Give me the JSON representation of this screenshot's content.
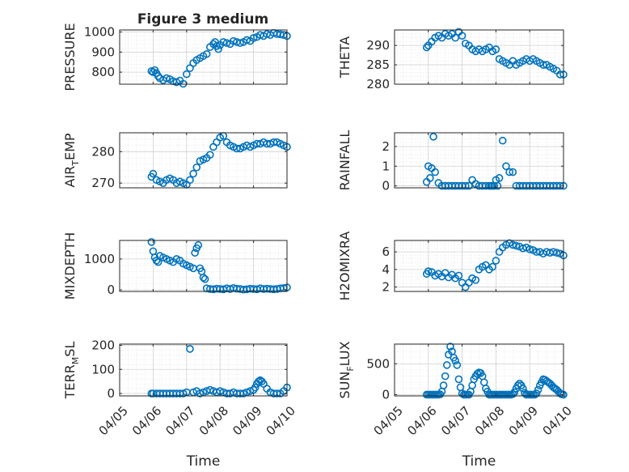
{
  "figure_title": "Figure 3 medium",
  "colors": {
    "marker": "#0072bd",
    "axis": "#262626",
    "grid": "#d0d0d0"
  },
  "chart_data": [
    {
      "type": "scatter",
      "title": "Figure 3 medium",
      "xlabel": "",
      "ylabel": "PRESSURE",
      "ylim": [
        740,
        1010
      ],
      "yticks": [
        800,
        900,
        1000
      ],
      "xlim": [
        0,
        5
      ],
      "grid": true,
      "x": [
        0.95,
        1.0,
        1.05,
        1.1,
        1.15,
        1.2,
        1.3,
        1.4,
        1.5,
        1.6,
        1.7,
        1.8,
        1.9,
        2.0,
        2.1,
        2.2,
        2.3,
        2.4,
        2.5,
        2.6,
        2.7,
        2.8,
        2.85,
        2.9,
        2.95,
        3.0,
        3.1,
        3.2,
        3.3,
        3.4,
        3.5,
        3.6,
        3.7,
        3.8,
        3.9,
        4.0,
        4.1,
        4.2,
        4.3,
        4.4,
        4.5,
        4.6,
        4.7,
        4.8,
        4.9,
        5.0
      ],
      "y": [
        805,
        800,
        810,
        795,
        780,
        770,
        760,
        770,
        765,
        755,
        750,
        758,
        742,
        790,
        820,
        845,
        860,
        870,
        880,
        890,
        925,
        940,
        950,
        930,
        915,
        935,
        950,
        945,
        940,
        955,
        950,
        945,
        950,
        960,
        955,
        970,
        975,
        985,
        980,
        990,
        985,
        995,
        990,
        988,
        985,
        980
      ]
    },
    {
      "type": "scatter",
      "xlabel": "",
      "ylabel": "THETA",
      "ylim": [
        280,
        294
      ],
      "yticks": [
        280,
        285,
        290
      ],
      "xlim": [
        0,
        5
      ],
      "grid": true,
      "x": [
        0.95,
        1.0,
        1.1,
        1.2,
        1.3,
        1.4,
        1.5,
        1.6,
        1.7,
        1.8,
        1.9,
        2.0,
        2.1,
        2.2,
        2.3,
        2.4,
        2.5,
        2.6,
        2.7,
        2.8,
        2.9,
        3.0,
        3.1,
        3.2,
        3.3,
        3.4,
        3.5,
        3.6,
        3.7,
        3.8,
        3.9,
        4.0,
        4.1,
        4.2,
        4.3,
        4.4,
        4.5,
        4.6,
        4.7,
        4.8,
        4.9,
        5.0
      ],
      "y": [
        289.5,
        290,
        291,
        292,
        292.5,
        292,
        293,
        292.5,
        293,
        292,
        293.5,
        292.5,
        290.5,
        290,
        289,
        288.5,
        289,
        288.5,
        289,
        289.5,
        288.5,
        289,
        286.5,
        286,
        285.5,
        285,
        286,
        285,
        285.5,
        286,
        286.5,
        286,
        286.5,
        286,
        285.5,
        285,
        285,
        284.5,
        284,
        283.5,
        282.5,
        282.5
      ]
    },
    {
      "type": "scatter",
      "xlabel": "",
      "ylabel": "AIR_TEMP",
      "ylim": [
        268.5,
        286
      ],
      "yticks": [
        270,
        280
      ],
      "xlim": [
        0,
        5
      ],
      "grid": true,
      "x": [
        0.95,
        1.0,
        1.1,
        1.2,
        1.3,
        1.4,
        1.5,
        1.6,
        1.7,
        1.8,
        1.9,
        2.0,
        2.1,
        2.2,
        2.3,
        2.4,
        2.5,
        2.6,
        2.7,
        2.8,
        2.9,
        3.0,
        3.1,
        3.2,
        3.3,
        3.4,
        3.5,
        3.6,
        3.7,
        3.8,
        3.9,
        4.0,
        4.1,
        4.2,
        4.3,
        4.4,
        4.5,
        4.6,
        4.7,
        4.8,
        4.9,
        5.0
      ],
      "y": [
        272,
        273,
        271,
        270.5,
        270,
        271,
        271.5,
        271,
        270,
        270.5,
        270,
        269.5,
        271,
        273,
        275,
        277,
        277.5,
        278,
        279,
        281.5,
        283,
        284.5,
        285,
        283,
        282,
        281.5,
        281,
        281,
        281.5,
        282,
        281.5,
        282,
        282.5,
        282.5,
        283,
        282.5,
        282.5,
        283,
        283,
        282.5,
        282,
        281.5
      ]
    },
    {
      "type": "scatter",
      "xlabel": "",
      "ylabel": "RAINFALL",
      "ylim": [
        -0.1,
        2.7
      ],
      "yticks": [
        0,
        1,
        2
      ],
      "xlim": [
        0,
        5
      ],
      "grid": true,
      "x": [
        0.95,
        1.0,
        1.05,
        1.1,
        1.15,
        1.2,
        1.3,
        1.4,
        1.5,
        1.6,
        1.7,
        1.8,
        1.9,
        2.0,
        2.1,
        2.2,
        2.3,
        2.4,
        2.5,
        2.6,
        2.7,
        2.8,
        2.85,
        2.9,
        2.95,
        3.0,
        3.05,
        3.1,
        3.2,
        3.3,
        3.4,
        3.5,
        3.6,
        3.7,
        3.8,
        3.9,
        4.0,
        4.1,
        4.2,
        4.3,
        4.4,
        4.5,
        4.6,
        4.7,
        4.8,
        4.9,
        5.0
      ],
      "y": [
        0.2,
        1.0,
        0.4,
        0.9,
        2.5,
        0.7,
        0.15,
        0,
        0,
        0,
        0,
        0,
        0,
        0,
        0,
        0,
        0.3,
        0.1,
        0,
        0,
        0,
        0,
        0,
        0,
        0,
        0.3,
        0,
        0.4,
        2.3,
        1.0,
        0.7,
        0.7,
        0,
        0,
        0,
        0,
        0,
        0,
        0,
        0,
        0,
        0,
        0,
        0,
        0,
        0,
        0
      ]
    },
    {
      "type": "scatter",
      "xlabel": "",
      "ylabel": "MIXDEPTH",
      "ylim": [
        -50,
        1600
      ],
      "yticks": [
        0,
        1000
      ],
      "xlim": [
        0,
        5
      ],
      "grid": true,
      "x": [
        0.95,
        1.0,
        1.05,
        1.1,
        1.15,
        1.2,
        1.3,
        1.4,
        1.5,
        1.6,
        1.7,
        1.8,
        1.9,
        2.0,
        2.1,
        2.2,
        2.25,
        2.3,
        2.35,
        2.4,
        2.45,
        2.5,
        2.55,
        2.6,
        2.7,
        2.8,
        2.9,
        3.0,
        3.1,
        3.2,
        3.3,
        3.4,
        3.5,
        3.6,
        3.7,
        3.8,
        3.9,
        4.0,
        4.1,
        4.2,
        4.3,
        4.4,
        4.5,
        4.6,
        4.7,
        4.8,
        4.9,
        5.0
      ],
      "y": [
        1550,
        1250,
        1050,
        950,
        900,
        1100,
        1050,
        1000,
        950,
        900,
        1000,
        950,
        850,
        800,
        750,
        700,
        1200,
        1350,
        1450,
        700,
        600,
        400,
        350,
        50,
        30,
        20,
        40,
        30,
        20,
        50,
        30,
        60,
        40,
        30,
        10,
        20,
        40,
        30,
        20,
        50,
        30,
        40,
        30,
        20,
        30,
        50,
        60,
        80
      ]
    },
    {
      "type": "scatter",
      "xlabel": "",
      "ylabel": "H2OMIXRA",
      "ylim": [
        1.5,
        7.3
      ],
      "yticks": [
        2,
        4,
        6
      ],
      "xlim": [
        0,
        5
      ],
      "grid": true,
      "x": [
        0.95,
        1.0,
        1.1,
        1.2,
        1.3,
        1.4,
        1.5,
        1.6,
        1.7,
        1.8,
        1.9,
        2.0,
        2.1,
        2.2,
        2.3,
        2.4,
        2.5,
        2.6,
        2.7,
        2.8,
        2.9,
        3.0,
        3.1,
        3.2,
        3.3,
        3.4,
        3.5,
        3.6,
        3.7,
        3.8,
        3.9,
        4.0,
        4.1,
        4.2,
        4.3,
        4.4,
        4.5,
        4.6,
        4.7,
        4.8,
        4.9,
        5.0
      ],
      "y": [
        3.5,
        3.8,
        3.7,
        3.3,
        3.5,
        3.2,
        3.6,
        3.1,
        3.4,
        3.0,
        3.3,
        2.5,
        2.0,
        2.5,
        3.0,
        2.8,
        4.0,
        4.3,
        4.5,
        4.0,
        4.3,
        5.0,
        6.0,
        6.5,
        6.8,
        7.0,
        6.8,
        6.7,
        6.6,
        6.4,
        6.5,
        6.3,
        6.2,
        6.0,
        6.0,
        5.8,
        6.0,
        5.9,
        6.0,
        5.9,
        5.8,
        5.6
      ]
    },
    {
      "type": "scatter",
      "xlabel": "Time",
      "ylabel": "TERR_MSL",
      "ylim": [
        -10,
        205
      ],
      "yticks": [
        0,
        100,
        200
      ],
      "xlim": [
        0,
        5
      ],
      "xticklabels": [
        "04/05",
        "04/06",
        "04/07",
        "04/08",
        "04/09",
        "04/10"
      ],
      "grid": true,
      "x": [
        0.95,
        1.0,
        1.1,
        1.2,
        1.3,
        1.4,
        1.5,
        1.6,
        1.7,
        1.8,
        1.9,
        2.0,
        2.1,
        2.2,
        2.3,
        2.4,
        2.5,
        2.6,
        2.7,
        2.8,
        2.9,
        3.0,
        3.1,
        3.2,
        3.3,
        3.4,
        3.5,
        3.6,
        3.7,
        3.8,
        3.9,
        4.0,
        4.05,
        4.1,
        4.15,
        4.2,
        4.25,
        4.3,
        4.4,
        4.5,
        4.6,
        4.7,
        4.8,
        4.9,
        5.0
      ],
      "y": [
        0,
        0,
        0,
        0,
        0,
        0,
        0,
        0,
        0,
        0,
        0,
        5,
        185,
        5,
        10,
        0,
        5,
        10,
        15,
        10,
        5,
        10,
        5,
        0,
        0,
        5,
        0,
        0,
        0,
        5,
        10,
        15,
        25,
        40,
        50,
        55,
        50,
        40,
        20,
        5,
        0,
        0,
        0,
        10,
        25
      ]
    },
    {
      "type": "scatter",
      "xlabel": "Time",
      "ylabel": "SUN_FLUX",
      "ylim": [
        -20,
        820
      ],
      "yticks": [
        0,
        500
      ],
      "xlim": [
        0,
        5
      ],
      "xticklabels": [
        "04/05",
        "04/06",
        "04/07",
        "04/08",
        "04/09",
        "04/10"
      ],
      "grid": true,
      "x": [
        0.95,
        1.0,
        1.05,
        1.1,
        1.15,
        1.2,
        1.25,
        1.3,
        1.35,
        1.4,
        1.45,
        1.5,
        1.55,
        1.6,
        1.65,
        1.7,
        1.75,
        1.8,
        1.85,
        1.9,
        1.95,
        2.0,
        2.05,
        2.1,
        2.15,
        2.2,
        2.25,
        2.3,
        2.35,
        2.4,
        2.45,
        2.5,
        2.55,
        2.6,
        2.65,
        2.7,
        2.75,
        2.8,
        2.85,
        2.9,
        2.95,
        3.0,
        3.05,
        3.1,
        3.15,
        3.2,
        3.25,
        3.3,
        3.35,
        3.4,
        3.45,
        3.5,
        3.55,
        3.6,
        3.65,
        3.7,
        3.75,
        3.8,
        3.85,
        3.9,
        3.95,
        4.0,
        4.05,
        4.1,
        4.15,
        4.2,
        4.25,
        4.3,
        4.35,
        4.4,
        4.45,
        4.5,
        4.55,
        4.6,
        4.65,
        4.7,
        4.75,
        4.8,
        4.85,
        4.9,
        4.95,
        5.0
      ],
      "y": [
        0,
        0,
        0,
        0,
        0,
        0,
        0,
        0,
        5,
        50,
        150,
        300,
        480,
        650,
        780,
        700,
        600,
        550,
        480,
        250,
        120,
        20,
        0,
        0,
        0,
        0,
        50,
        150,
        250,
        300,
        340,
        360,
        350,
        300,
        200,
        100,
        50,
        0,
        0,
        0,
        0,
        0,
        0,
        0,
        0,
        0,
        0,
        0,
        0,
        0,
        0,
        10,
        40,
        100,
        150,
        180,
        150,
        100,
        30,
        0,
        0,
        0,
        0,
        0,
        0,
        20,
        80,
        150,
        200,
        250,
        240,
        220,
        200,
        180,
        150,
        120,
        100,
        80,
        50,
        20,
        5,
        0
      ]
    }
  ]
}
